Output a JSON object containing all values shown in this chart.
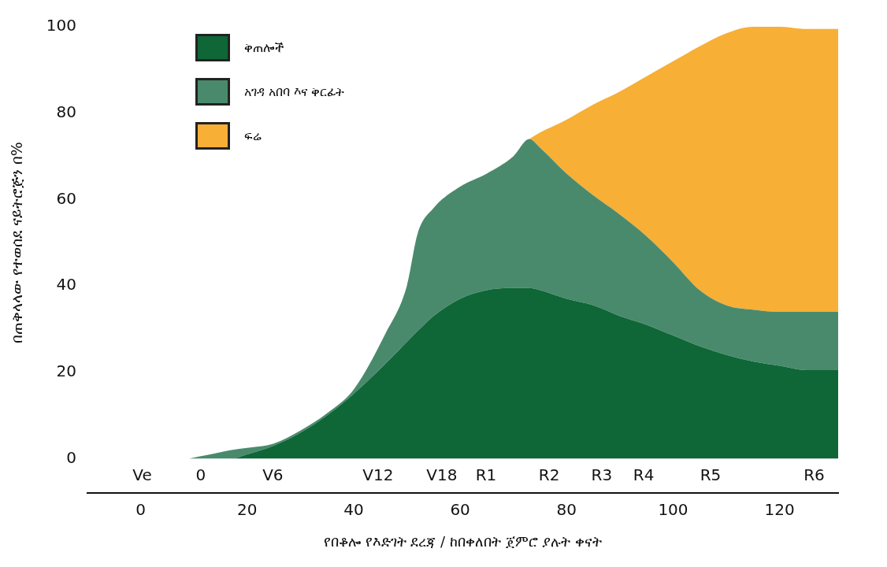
{
  "chart_data": {
    "type": "area",
    "stacked": true,
    "xlabel": "የበቆሎ የእድገት ደረጃ / ከበቀለበት ጀምሮ ያሉት ቀናት",
    "ylabel": "በጠቅላላው የተወሰደ ናይትሮጅን በ%",
    "x": [
      9,
      15,
      17,
      20,
      25,
      30,
      35,
      40,
      46,
      50,
      52,
      55,
      60,
      65,
      70,
      73,
      75,
      80,
      85,
      90,
      95,
      100,
      105,
      110,
      115,
      120,
      125,
      131
    ],
    "series": [
      {
        "name": "ቅጠሎች",
        "color": "#0f6637",
        "values": [
          0,
          0,
          0,
          1,
          3,
          6,
          10,
          15,
          22,
          27,
          29.5,
          33,
          37,
          39,
          39.5,
          39.5,
          39,
          37,
          35.5,
          33,
          31,
          28.5,
          26,
          24,
          22.5,
          21.5,
          20.5,
          20.5
        ]
      },
      {
        "name": "አገዳ አበባ እና ቅርፊት",
        "color": "#4a8a6c",
        "values": [
          0,
          1.5,
          2,
          1.5,
          0.5,
          0.5,
          0.5,
          1,
          7,
          13,
          22.5,
          25,
          26,
          27,
          30.5,
          34.5,
          33,
          29,
          25.5,
          23.5,
          20.5,
          17,
          13,
          11.5,
          12,
          12.5,
          13.5,
          13.5
        ]
      },
      {
        "name": "ፍሬ",
        "color": "#f7af36",
        "values": [
          null,
          null,
          null,
          null,
          null,
          null,
          null,
          null,
          null,
          null,
          null,
          null,
          null,
          null,
          null,
          0,
          3.5,
          12.5,
          21,
          28.5,
          37,
          46.5,
          56.5,
          63,
          65.5,
          66,
          65.5,
          65.5
        ]
      }
    ],
    "xlim": [
      -10,
      131
    ],
    "xticks": [
      0,
      20,
      40,
      60,
      80,
      100,
      120
    ],
    "annotations": [
      "Ve",
      "0",
      "V6",
      "V12",
      "V18",
      "R1",
      "R2",
      "R3",
      "R4",
      "R5",
      "R6"
    ],
    "ylim": [
      0,
      100
    ],
    "yticks": [
      0,
      20,
      40,
      60,
      80,
      100
    ],
    "grid": false,
    "legend": "top left"
  }
}
